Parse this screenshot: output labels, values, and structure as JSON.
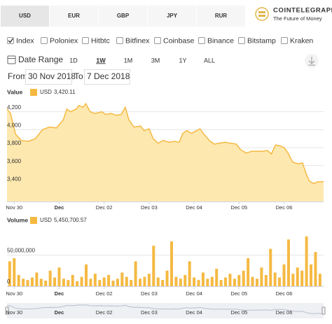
{
  "currency_tabs": {
    "items": [
      "USD",
      "EUR",
      "GBP",
      "JPY",
      "RUR"
    ],
    "selected": 0
  },
  "logo": {
    "name": "COINTELEGRAPH",
    "tagline": "The Future of Money"
  },
  "exchanges": [
    {
      "name": "Index",
      "color": "#f0a500",
      "checked": true
    },
    {
      "name": "Poloniex",
      "color": "#3b4a8c",
      "checked": false
    },
    {
      "name": "Hitbtc",
      "color": "#1a73c7",
      "checked": false
    },
    {
      "name": "Bitfinex",
      "color": "#f5a623",
      "checked": false
    },
    {
      "name": "Coinbase",
      "color": "#222222",
      "checked": false
    },
    {
      "name": "Binance",
      "color": "#2a8a3a",
      "checked": false
    },
    {
      "name": "Bitstamp",
      "color": "#9b3fbf",
      "checked": false
    },
    {
      "name": "Kraken",
      "color": "#d43a2a",
      "checked": false
    }
  ],
  "date_range": {
    "label": "Date Range",
    "buttons": [
      "1D",
      "1W",
      "1M",
      "3M",
      "1Y",
      "ALL"
    ],
    "selected": 1
  },
  "period": {
    "from_label": "From",
    "from": "30 Nov 2018",
    "to_label": "To",
    "to": "7 Dec 2018"
  },
  "chart_data": [
    {
      "type": "area",
      "title": "Value",
      "xlim": [
        -0.16,
        6.88
      ],
      "xticks": [
        {
          "value": 0,
          "label": "Nov 30"
        },
        {
          "value": 1,
          "label": "Dec"
        },
        {
          "value": 2,
          "label": "Dec 02"
        },
        {
          "value": 3,
          "label": "Dec 03"
        },
        {
          "value": 4,
          "label": "Dec 04"
        },
        {
          "value": 5,
          "label": "Dec 05"
        },
        {
          "value": 6,
          "label": "Dec 06"
        }
      ],
      "ylim": [
        3200,
        4330
      ],
      "yticks": [
        {
          "value": 3400,
          "label": "3,400"
        },
        {
          "value": 3600,
          "label": "3,600"
        },
        {
          "value": 3800,
          "label": "3,800"
        },
        {
          "value": 4000,
          "label": "4,000"
        },
        {
          "value": 4200,
          "label": "4,200"
        }
      ],
      "grid": true,
      "series": [
        {
          "name": "USD",
          "color": "#f5b942",
          "current": {
            "value": 3420.11,
            "label": "3,420.11"
          },
          "x": [
            -0.16,
            -0.08,
            0.03,
            0.16,
            0.31,
            0.47,
            0.63,
            0.78,
            0.94,
            1.09,
            1.17,
            1.25,
            1.38,
            1.44,
            1.53,
            1.59,
            1.69,
            1.8,
            1.95,
            2.03,
            2.16,
            2.27,
            2.38,
            2.47,
            2.55,
            2.66,
            2.81,
            2.89,
            3.0,
            3.09,
            3.2,
            3.31,
            3.44,
            3.56,
            3.67,
            3.75,
            3.84,
            3.94,
            4.06,
            4.13,
            4.22,
            4.34,
            4.45,
            4.56,
            4.69,
            4.81,
            4.94,
            5.03,
            5.16,
            5.28,
            5.41,
            5.53,
            5.63,
            5.72,
            5.81,
            5.91,
            6.0,
            6.09,
            6.19,
            6.31,
            6.41,
            6.5,
            6.56,
            6.66,
            6.75,
            6.88
          ],
          "values": [
            4230,
            4180,
            3950,
            3880,
            3870,
            3900,
            4000,
            4030,
            4020,
            4110,
            4230,
            4200,
            4230,
            4270,
            4250,
            4290,
            4200,
            4180,
            4200,
            4170,
            4180,
            4160,
            4170,
            4250,
            4110,
            4030,
            4040,
            3990,
            4010,
            3900,
            3850,
            3880,
            3860,
            3870,
            3860,
            3960,
            3990,
            3960,
            3990,
            4010,
            3950,
            3880,
            3840,
            3850,
            3860,
            3850,
            3840,
            3780,
            3740,
            3760,
            3760,
            3760,
            3770,
            3730,
            3830,
            3820,
            3800,
            3740,
            3640,
            3620,
            3630,
            3500,
            3430,
            3400,
            3420,
            3420
          ]
        }
      ]
    },
    {
      "type": "bar",
      "title": "Volume",
      "xlim": [
        -0.16,
        6.88
      ],
      "xticks": [
        {
          "value": 0,
          "label": "Nov 30"
        },
        {
          "value": 1,
          "label": "Dec"
        },
        {
          "value": 2,
          "label": "Dec 02"
        },
        {
          "value": 3,
          "label": "Dec 03"
        },
        {
          "value": 4,
          "label": "Dec 04"
        },
        {
          "value": 5,
          "label": "Dec 05"
        },
        {
          "value": 6,
          "label": "Dec 06"
        }
      ],
      "ylim": [
        0,
        100000000
      ],
      "yticks": [
        0,
        {
          "value": 50000000,
          "label": "50,000,000"
        }
      ],
      "grid": true,
      "series": [
        {
          "name": "USD",
          "color": "#f5b942",
          "current": {
            "value": 5450700.57,
            "label": "5,450,700.57"
          },
          "x": [
            -0.1,
            0,
            0.1,
            0.2,
            0.3,
            0.4,
            0.5,
            0.6,
            0.7,
            0.8,
            0.9,
            1,
            1.1,
            1.2,
            1.3,
            1.4,
            1.5,
            1.6,
            1.7,
            1.8,
            1.9,
            2,
            2.1,
            2.2,
            2.3,
            2.4,
            2.5,
            2.6,
            2.7,
            2.8,
            2.9,
            3,
            3.1,
            3.2,
            3.3,
            3.4,
            3.5,
            3.6,
            3.7,
            3.8,
            3.9,
            4,
            4.1,
            4.2,
            4.3,
            4.4,
            4.5,
            4.6,
            4.7,
            4.8,
            4.9,
            5,
            5.1,
            5.2,
            5.3,
            5.4,
            5.5,
            5.6,
            5.7,
            5.8,
            5.9,
            6,
            6.1,
            6.2,
            6.3,
            6.4,
            6.5,
            6.6,
            6.7,
            6.8
          ],
          "values": [
            40000000,
            45000000,
            18000000,
            12000000,
            10000000,
            14000000,
            22000000,
            12000000,
            9000000,
            25000000,
            14000000,
            30000000,
            12000000,
            10000000,
            18000000,
            8000000,
            15000000,
            35000000,
            12000000,
            20000000,
            10000000,
            14000000,
            18000000,
            9000000,
            12000000,
            22000000,
            15000000,
            10000000,
            40000000,
            12000000,
            15000000,
            20000000,
            65000000,
            14000000,
            10000000,
            25000000,
            72000000,
            15000000,
            12000000,
            18000000,
            40000000,
            14000000,
            10000000,
            22000000,
            12000000,
            15000000,
            28000000,
            10000000,
            14000000,
            20000000,
            12000000,
            18000000,
            25000000,
            45000000,
            15000000,
            12000000,
            30000000,
            18000000,
            60000000,
            22000000,
            14000000,
            35000000,
            75000000,
            20000000,
            30000000,
            25000000,
            80000000,
            35000000,
            55000000,
            20000000
          ]
        }
      ]
    }
  ]
}
